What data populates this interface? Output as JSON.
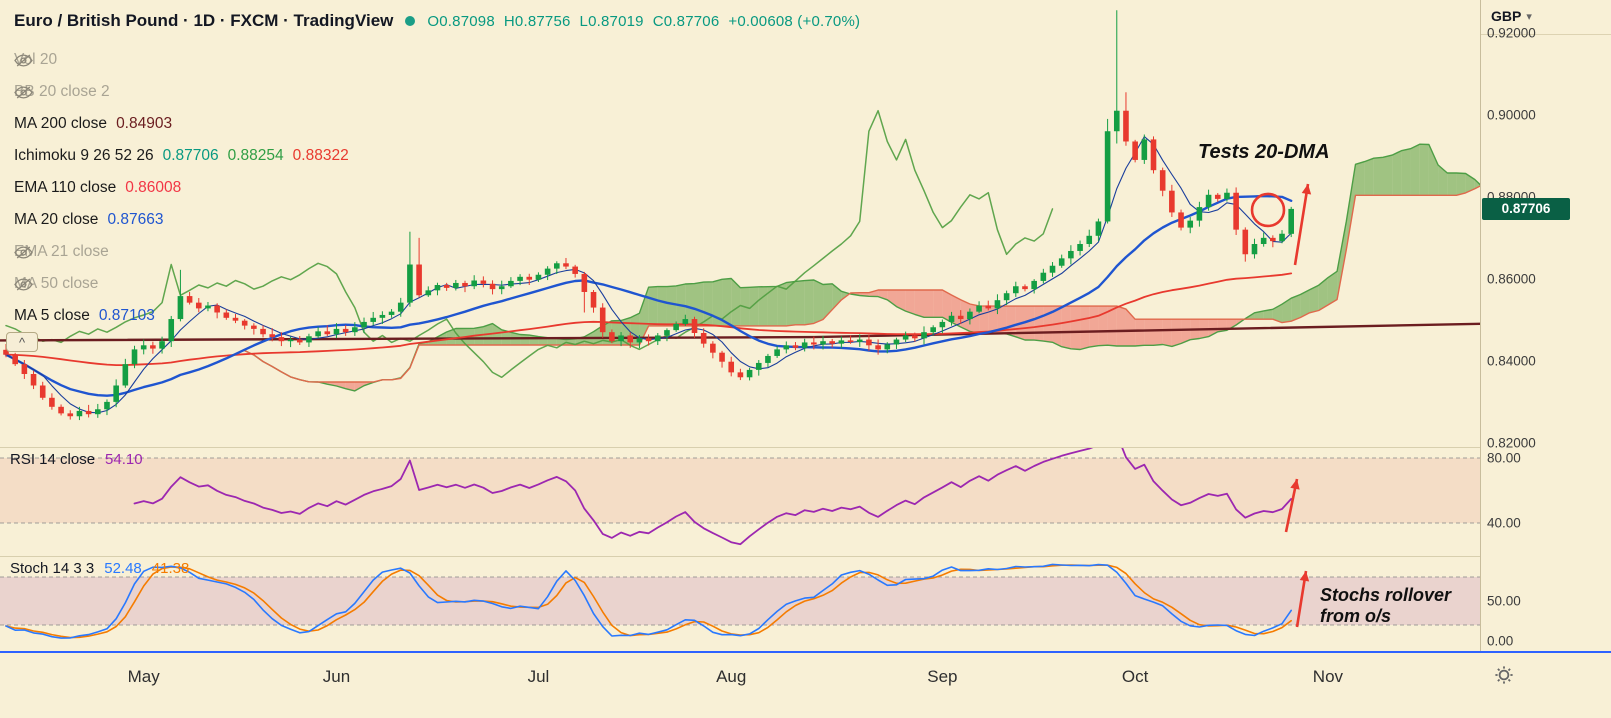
{
  "app": {
    "currency_label": "GBP"
  },
  "header": {
    "title": "Euro / British Pound · 1D · FXCM · TradingView",
    "ohlc": {
      "o": "O0.87098",
      "h": "H0.87756",
      "l": "L0.87019",
      "c": "C0.87706",
      "change": "+0.00608 (+0.70%)"
    }
  },
  "legend": {
    "rows": [
      {
        "label": "Vol 20",
        "hidden": true
      },
      {
        "label": "BB 20 close 2",
        "hidden": true
      },
      {
        "label": "MA 200 close",
        "values": [
          {
            "text": "0.84903",
            "color": "#6b1d20"
          }
        ]
      },
      {
        "label": "Ichimoku 9 26 52 26",
        "values": [
          {
            "text": "0.87706",
            "color": "#089981"
          },
          {
            "text": "0.88254",
            "color": "#2f9e44"
          },
          {
            "text": "0.88322",
            "color": "#e8392e"
          }
        ]
      },
      {
        "label": "EMA 110 close",
        "values": [
          {
            "text": "0.86008",
            "color": "#f23645"
          }
        ]
      },
      {
        "label": "MA 20 close",
        "values": [
          {
            "text": "0.87663",
            "color": "#1f55d0"
          }
        ]
      },
      {
        "label": "EMA 21 close",
        "hidden": true
      },
      {
        "label": "MA 50 close",
        "hidden": true
      },
      {
        "label": "MA 5 close",
        "values": [
          {
            "text": "0.87103",
            "color": "#1f55d0"
          }
        ]
      }
    ]
  },
  "annotations": {
    "main": "Tests 20-DMA",
    "stoch": "Stochs rollover from o/s"
  },
  "price_scale": {
    "tick_labels": [
      "0.92000",
      "0.90000",
      "0.88000",
      "0.86000",
      "0.84000",
      "0.82000"
    ],
    "tick_values": [
      0.92,
      0.9,
      0.88,
      0.86,
      0.84,
      0.82
    ],
    "last_price_label": "0.87706",
    "last_price": 0.87706
  },
  "rsi_panel": {
    "label": "RSI 14 close",
    "value": "54.10",
    "axis_labels": [
      "80.00",
      "40.00"
    ],
    "axis_values": [
      80,
      40
    ],
    "band": [
      80,
      40
    ]
  },
  "stoch_panel": {
    "label": "Stoch 14 3 3",
    "k_value": "52.48",
    "d_value": "41.38",
    "axis_labels": [
      "50.00",
      "0.00"
    ],
    "axis_values": [
      50,
      0
    ],
    "band": [
      80,
      20
    ]
  },
  "time_axis": {
    "months": [
      "May",
      "Jun",
      "Jul",
      "Aug",
      "Sep",
      "Oct",
      "Nov"
    ]
  },
  "colors": {
    "background": "#f8f0d6",
    "up": "#149e43",
    "down": "#e8392e",
    "cloud_up": "#6aa84f",
    "cloud_down": "#ee7b70",
    "senkou_a": "#4d9e45",
    "senkou_b": "#e0694c",
    "chikou": "#4f9d3f",
    "ma20": "#1f55d0",
    "ma5": "#1a3e9c",
    "ema110": "#e8392e",
    "ma200": "#6b1d20",
    "rsi": "#9c27b0",
    "rsi_band": "rgba(220,90,90,0.13)",
    "stoch_k": "#2979ff",
    "stoch_d": "#f57c00",
    "stoch_band": "rgba(160,60,170,0.16)",
    "annotation": "#e8392e",
    "badge_bg": "#0a6045"
  },
  "chart_data": {
    "type": "candlestick",
    "symbol": "Euro / British Pound",
    "timeframe": "1D",
    "ylim": [
      0.819,
      0.928
    ],
    "open_rule": "previous_close",
    "closes": [
      0.8415,
      0.8392,
      0.8368,
      0.834,
      0.831,
      0.8288,
      0.8272,
      0.8265,
      0.8278,
      0.827,
      0.8282,
      0.83,
      0.834,
      0.8392,
      0.8428,
      0.8438,
      0.843,
      0.8448,
      0.8502,
      0.8558,
      0.8542,
      0.8528,
      0.8535,
      0.8518,
      0.8505,
      0.8498,
      0.8486,
      0.8478,
      0.8465,
      0.8458,
      0.8448,
      0.8452,
      0.8445,
      0.846,
      0.8472,
      0.8465,
      0.8478,
      0.847,
      0.8482,
      0.8495,
      0.8505,
      0.8512,
      0.852,
      0.8542,
      0.8635,
      0.856,
      0.8572,
      0.8585,
      0.8578,
      0.859,
      0.8582,
      0.8596,
      0.8588,
      0.8575,
      0.8582,
      0.8595,
      0.8605,
      0.8598,
      0.861,
      0.8625,
      0.8638,
      0.863,
      0.8612,
      0.8568,
      0.853,
      0.847,
      0.8448,
      0.8462,
      0.8445,
      0.8455,
      0.8448,
      0.8462,
      0.8475,
      0.849,
      0.8502,
      0.8468,
      0.8442,
      0.842,
      0.8398,
      0.8372,
      0.836,
      0.8378,
      0.8395,
      0.8412,
      0.8428,
      0.8438,
      0.8432,
      0.8445,
      0.844,
      0.8448,
      0.8442,
      0.845,
      0.8446,
      0.8452,
      0.8438,
      0.8428,
      0.844,
      0.8452,
      0.8462,
      0.8455,
      0.847,
      0.8482,
      0.8495,
      0.851,
      0.8502,
      0.852,
      0.8535,
      0.8528,
      0.8548,
      0.8565,
      0.8582,
      0.8575,
      0.8595,
      0.8615,
      0.8632,
      0.865,
      0.8668,
      0.8685,
      0.8705,
      0.874,
      0.896,
      0.901,
      0.8935,
      0.889,
      0.894,
      0.8865,
      0.8815,
      0.8762,
      0.8725,
      0.8742,
      0.8775,
      0.8805,
      0.8795,
      0.881,
      0.872,
      0.866,
      0.8685,
      0.87,
      0.8692,
      0.871,
      0.87706
    ],
    "overrides": {
      "19": {
        "h": 0.8622
      },
      "44": {
        "h": 0.8715,
        "l": 0.8532
      },
      "45": {
        "h": 0.87
      },
      "63": {
        "l": 0.8518
      },
      "120": {
        "h": 0.899,
        "l": 0.8735
      },
      "121": {
        "h": 0.9255,
        "l": 0.893
      },
      "122": {
        "h": 0.9055
      },
      "135": {
        "l": 0.8642
      },
      "140": {
        "o": 0.87098,
        "h": 0.87756,
        "l": 0.87019,
        "c": 0.87706
      }
    },
    "month_start_indices": [
      15,
      36,
      58,
      79,
      102,
      123,
      144
    ],
    "ma200_points": [
      [
        0,
        0.845
      ],
      [
        0.55,
        0.8458
      ],
      [
        1,
        0.84903
      ]
    ],
    "indicators": {
      "ichimoku": [
        9,
        26,
        52,
        26
      ],
      "ma": [
        5,
        20,
        200
      ],
      "ema": [
        110
      ],
      "rsi": [
        14
      ],
      "stoch": [
        14,
        3,
        3
      ]
    }
  }
}
